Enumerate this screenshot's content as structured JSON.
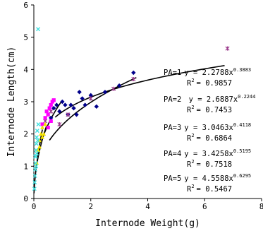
{
  "chart_data": {
    "type": "scatter",
    "xlabel": "Internode Weight(g)",
    "ylabel": "Internode Length(cm)",
    "xlim": [
      0,
      8
    ],
    "ylim": [
      0,
      6
    ],
    "xticks": [
      "0",
      "2",
      "4",
      "6",
      "8"
    ],
    "yticks": [
      "0",
      "1",
      "2",
      "3",
      "4",
      "5",
      "6"
    ],
    "grid": false,
    "legend": "none",
    "series": [
      {
        "group": "PA=1",
        "color": "#00008b",
        "marker": "diamond",
        "points": [
          [
            0.6,
            2.5
          ],
          [
            0.7,
            2.8
          ],
          [
            0.8,
            2.9
          ],
          [
            0.9,
            2.7
          ],
          [
            1.0,
            3.0
          ],
          [
            1.1,
            2.9
          ],
          [
            1.2,
            2.6
          ],
          [
            1.3,
            2.9
          ],
          [
            1.4,
            2.8
          ],
          [
            1.5,
            2.6
          ],
          [
            1.6,
            3.3
          ],
          [
            1.7,
            3.1
          ],
          [
            1.8,
            2.9
          ],
          [
            2.0,
            3.2
          ],
          [
            2.2,
            2.85
          ],
          [
            2.5,
            3.3
          ],
          [
            3.0,
            3.5
          ],
          [
            3.5,
            3.9
          ]
        ],
        "fit": {
          "a": 2.2788,
          "b": 0.3883,
          "r2": 0.9857,
          "x_range": [
            0.55,
            3.6
          ]
        },
        "label": {
          "pa": "PA=1",
          "eq_prefix": "y = 2.2788x",
          "exponent": "0.3883",
          "r2_text": "R",
          "r2_value": "= 0.9857"
        }
      },
      {
        "group": "PA=2",
        "color": "#9b3a8c",
        "marker": "star",
        "points": [
          [
            0.4,
            2.4
          ],
          [
            0.6,
            2.7
          ],
          [
            0.9,
            2.3
          ],
          [
            1.2,
            2.6
          ],
          [
            2.0,
            3.1
          ],
          [
            2.8,
            3.4
          ],
          [
            3.5,
            3.7
          ],
          [
            6.8,
            4.65
          ]
        ],
        "fit": {
          "a": 2.6887,
          "b": 0.2244,
          "r2": 0.7453,
          "x_range": [
            0.75,
            6.7
          ]
        },
        "label": {
          "pa": "PA=2",
          "eq_prefix": " y = 2.6887x",
          "exponent": "0.2244",
          "r2_text": "R",
          "r2_value": "= 0.7453"
        }
      },
      {
        "group": "PA=3",
        "color": "#ff00ff",
        "marker": "square",
        "points": [
          [
            0.3,
            2.3
          ],
          [
            0.4,
            2.5
          ],
          [
            0.45,
            2.7
          ],
          [
            0.5,
            2.6
          ],
          [
            0.55,
            2.8
          ],
          [
            0.6,
            2.9
          ],
          [
            0.65,
            3.0
          ],
          [
            0.7,
            3.05
          ],
          [
            0.5,
            2.2
          ],
          [
            0.6,
            2.4
          ]
        ],
        "fit": {
          "a": 3.0463,
          "b": 0.4118,
          "r2": 0.6864,
          "x_range": [
            0.25,
            0.95
          ]
        },
        "label": {
          "pa": "PA=3",
          "eq_prefix": "y = 3.0463x",
          "exponent": "0.4118",
          "r2_text": "R",
          "r2_value": "= 0.6864"
        }
      },
      {
        "group": "PA=4",
        "color": "#f5e400",
        "marker": "triangle",
        "points": [
          [
            0.1,
            1.1
          ],
          [
            0.15,
            1.5
          ],
          [
            0.2,
            1.8
          ],
          [
            0.25,
            2.0
          ],
          [
            0.3,
            2.2
          ],
          [
            0.35,
            2.0
          ],
          [
            0.4,
            2.3
          ],
          [
            0.2,
            1.6
          ],
          [
            0.3,
            1.9
          ]
        ],
        "fit": {
          "a": 3.4258,
          "b": 0.5195,
          "r2": 0.7518,
          "x_range": [
            0.1,
            0.45
          ]
        },
        "label": {
          "pa": "PA=4",
          "eq_prefix": "y = 3.4258x",
          "exponent": "0.5195",
          "r2_text": "R",
          "r2_value": "= 0.7518"
        }
      },
      {
        "group": "PA=5",
        "color": "#40e0e0",
        "marker": "x",
        "points": [
          [
            0.02,
            0.3
          ],
          [
            0.03,
            0.5
          ],
          [
            0.04,
            0.7
          ],
          [
            0.05,
            0.9
          ],
          [
            0.06,
            1.1
          ],
          [
            0.07,
            1.3
          ],
          [
            0.08,
            1.5
          ],
          [
            0.09,
            1.7
          ],
          [
            0.1,
            1.9
          ],
          [
            0.12,
            2.1
          ],
          [
            0.14,
            1.8
          ],
          [
            0.16,
            2.3
          ],
          [
            0.05,
            1.3
          ],
          [
            0.1,
            1.4
          ],
          [
            0.08,
            1.0
          ],
          [
            0.15,
            5.25
          ]
        ],
        "fit": {
          "a": 4.5588,
          "b": 0.6295,
          "r2": 0.5467,
          "x_range": [
            0.005,
            0.3
          ]
        },
        "label": {
          "pa": "PA=5",
          "eq_prefix": "y = 4.5588x",
          "exponent": "0.6295",
          "r2_text": "R",
          "r2_value": "= 0.5467"
        }
      }
    ],
    "r2_sup": "2"
  }
}
